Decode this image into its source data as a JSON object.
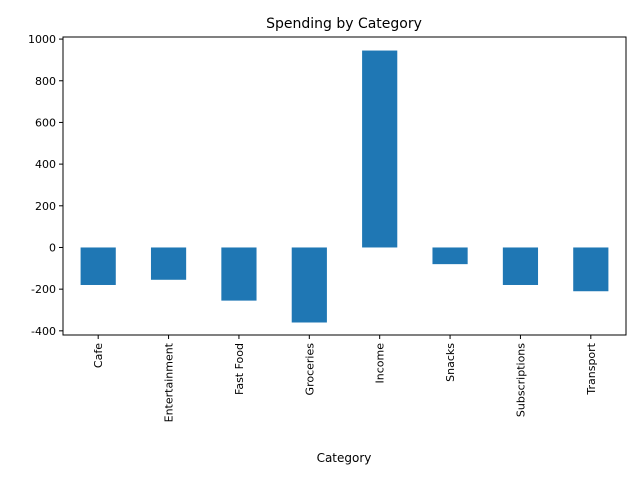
{
  "chart_data": {
    "type": "bar",
    "title": "Spending by Category",
    "xlabel": "Category",
    "ylabel": "",
    "categories": [
      "Cafe",
      "Entertainment",
      "Fast Food",
      "Groceries",
      "Income",
      "Snacks",
      "Subscriptions",
      "Transport"
    ],
    "values": [
      -180,
      -155,
      -255,
      -360,
      945,
      -80,
      -180,
      -210
    ],
    "ylim": [
      -420,
      1010
    ],
    "yticks": [
      -400,
      -200,
      0,
      200,
      400,
      600,
      800,
      1000
    ],
    "bar_color": "#1f77b4",
    "grid": false,
    "legend": "none"
  }
}
